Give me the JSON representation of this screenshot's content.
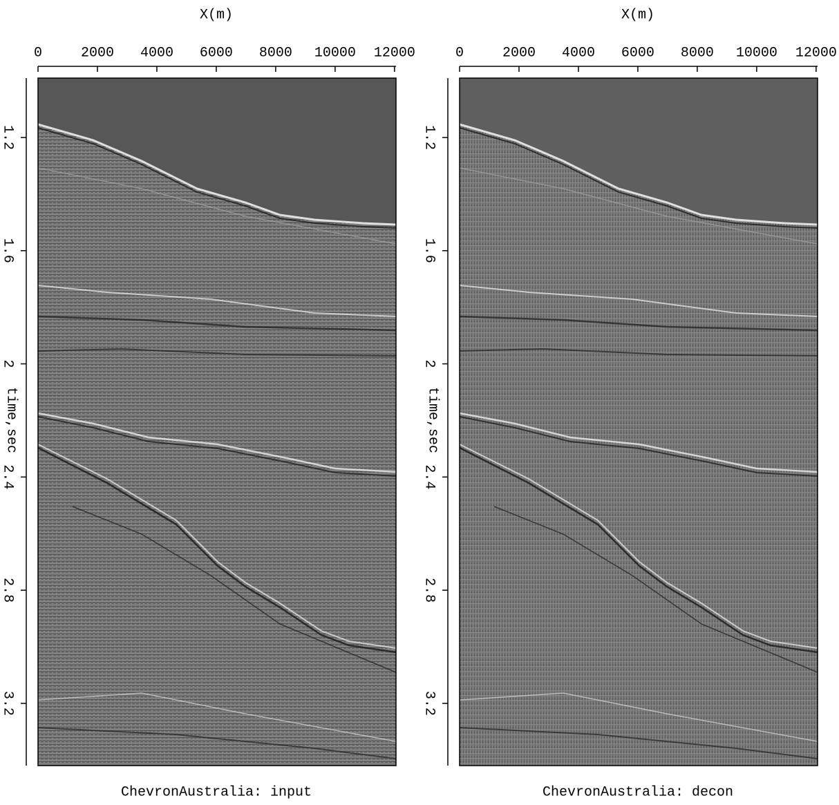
{
  "chart_data": [
    {
      "type": "seismic",
      "title": "ChevronAustralia: input",
      "xlabel": "X(m)",
      "ylabel": "time,sec",
      "xlim": [
        0,
        12050
      ],
      "xticks": [
        0,
        2000,
        4000,
        6000,
        8000,
        10000,
        12000
      ],
      "ylim": [
        0.99,
        3.42
      ],
      "yticks": [
        1.2,
        1.6,
        2,
        2.4,
        2.8,
        3.2
      ]
    },
    {
      "type": "seismic",
      "title": "ChevronAustralia: decon",
      "xlabel": "X(m)",
      "ylabel": "time,sec",
      "xlim": [
        0,
        12050
      ],
      "xticks": [
        0,
        2000,
        4000,
        6000,
        8000,
        10000,
        12000
      ],
      "ylim": [
        0.99,
        3.42
      ],
      "yticks": [
        1.2,
        1.6,
        2,
        2.4,
        2.8,
        3.2
      ]
    }
  ]
}
